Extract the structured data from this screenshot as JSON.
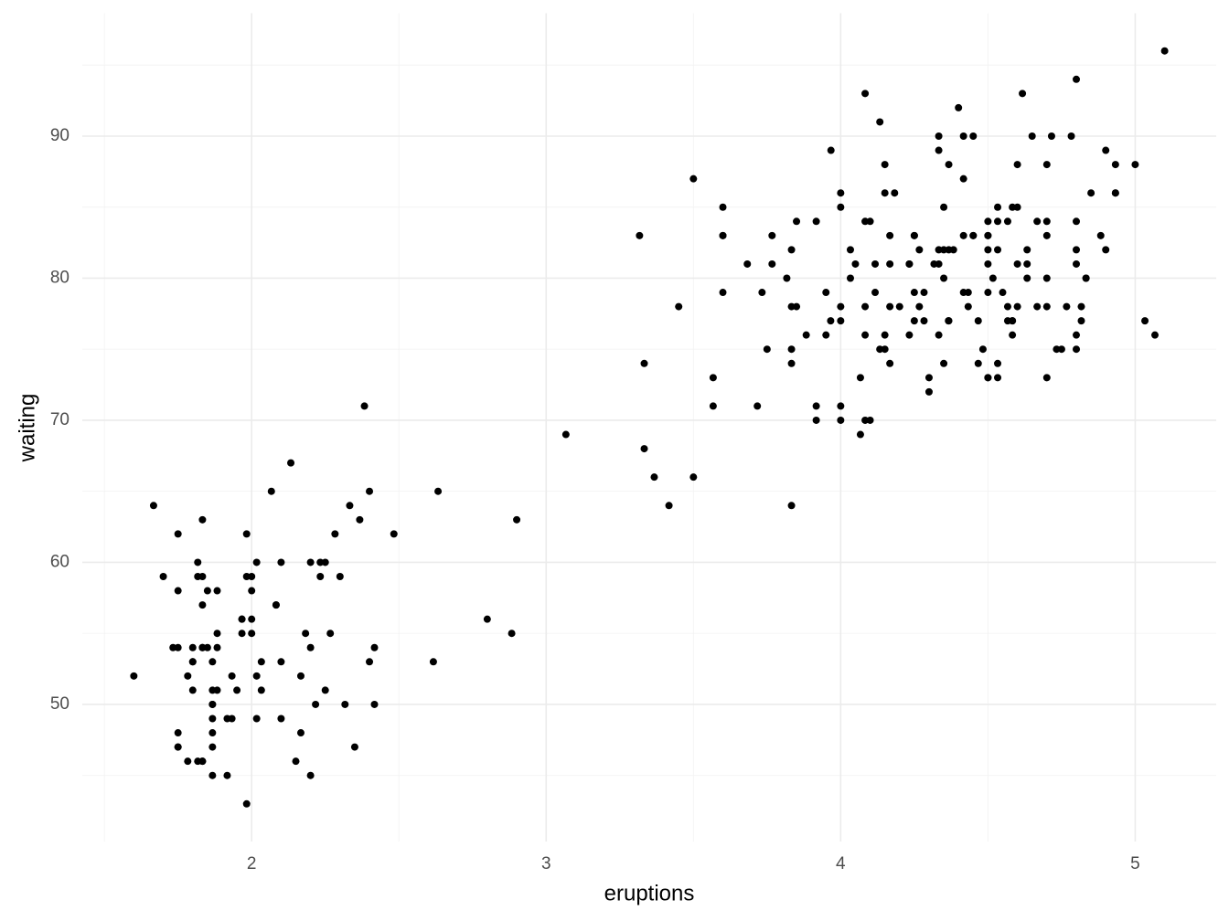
{
  "chart_data": {
    "type": "scatter",
    "xlabel": "eruptions",
    "ylabel": "waiting",
    "color": "#000000",
    "grid": true,
    "xlim": [
      1.425,
      5.275
    ],
    "ylim": [
      40.35,
      98.65
    ],
    "xticks": [
      2,
      3,
      4,
      5
    ],
    "yticks": [
      50,
      60,
      70,
      80,
      90
    ],
    "xminorticks": [
      1.5,
      2.5,
      3.5,
      4.5
    ],
    "yminorticks": [
      45,
      55,
      65,
      75,
      85,
      95
    ],
    "x": [
      3.6,
      1.8,
      3.333,
      2.283,
      4.533,
      2.883,
      4.7,
      3.6,
      1.95,
      4.35,
      1.833,
      3.917,
      4.2,
      1.75,
      4.7,
      2.167,
      1.75,
      4.8,
      1.6,
      4.25,
      1.8,
      1.75,
      3.45,
      3.067,
      4.533,
      3.6,
      1.967,
      4.083,
      3.85,
      4.433,
      4.3,
      4.467,
      3.367,
      4.033,
      3.833,
      2.017,
      1.867,
      4.833,
      1.833,
      4.783,
      4.35,
      1.883,
      4.567,
      1.75,
      4.533,
      3.317,
      3.833,
      2.1,
      4.633,
      2,
      4.8,
      4.716,
      1.833,
      4.833,
      1.733,
      4.883,
      3.717,
      1.667,
      4.567,
      4.317,
      2.233,
      4.5,
      1.75,
      4.8,
      1.817,
      4.4,
      4.167,
      4.7,
      2.067,
      4.7,
      4.033,
      1.967,
      4.5,
      4,
      1.983,
      5.067,
      2.017,
      4.567,
      3.883,
      3.6,
      4.133,
      4.333,
      4.1,
      2.633,
      4.067,
      4.933,
      3.95,
      4.517,
      2.167,
      4,
      2.2,
      4.333,
      1.867,
      4.817,
      1.833,
      4.3,
      4.667,
      3.75,
      1.867,
      4.9,
      2.483,
      4.367,
      2.1,
      4.5,
      4.05,
      1.867,
      4.7,
      1.783,
      4.85,
      3.683,
      4.733,
      2.3,
      4.9,
      4.417,
      1.7,
      4.633,
      2.317,
      4.6,
      1.817,
      4.417,
      2.617,
      4.067,
      4.25,
      1.967,
      4.6,
      3.767,
      1.917,
      4.5,
      2.267,
      4.65,
      1.867,
      4.167,
      2.8,
      4.333,
      1.833,
      4.383,
      1.883,
      4.933,
      2.033,
      3.733,
      4.233,
      2.233,
      4.533,
      4.817,
      4.333,
      1.983,
      4.633,
      2.017,
      5.1,
      1.8,
      5.033,
      4,
      2.4,
      4.6,
      3.567,
      4,
      4.5,
      4.083,
      1.8,
      3.967,
      2.2,
      4.15,
      2,
      3.833,
      3.5,
      4.583,
      2.367,
      5,
      1.933,
      4.617,
      1.917,
      2.083,
      4.583,
      3.333,
      4.167,
      4.333,
      4.5,
      2.417,
      4,
      4.167,
      1.883,
      4.583,
      4.25,
      3.767,
      2.033,
      4.433,
      4.083,
      1.833,
      4.417,
      2.183,
      4.8,
      1.833,
      4.8,
      4.1,
      3.966,
      4.233,
      3.5,
      4.366,
      2.25,
      4.667,
      2.1,
      4.35,
      4.133,
      1.867,
      4.6,
      1.783,
      4.367,
      3.85,
      1.933,
      4.5,
      2.383,
      4.7,
      1.867,
      3.833,
      3.417,
      4.233,
      2.4,
      4.8,
      2,
      4.15,
      1.867,
      4.267,
      1.75,
      4.483,
      4,
      4.117,
      4.083,
      4.267,
      3.917,
      4.55,
      4.083,
      2.417,
      4.183,
      2.217,
      4.45,
      1.883,
      1.85,
      4.283,
      3.95,
      2.333,
      4.15,
      2.35,
      4.933,
      2.9,
      4.583,
      3.833,
      2.083,
      4.367,
      2.133,
      4.35,
      2.2,
      4.45,
      3.567,
      4.5,
      4.15,
      3.817,
      3.917,
      4.45,
      2,
      4.283,
      4.767,
      4.533,
      1.85,
      4.25,
      1.983,
      2.25,
      4.75,
      4.117,
      2.15,
      4.417,
      1.817,
      4.467
    ],
    "y": [
      79,
      54,
      74,
      62,
      85,
      55,
      88,
      85,
      51,
      85,
      54,
      84,
      78,
      47,
      83,
      52,
      62,
      84,
      52,
      79,
      51,
      47,
      78,
      69,
      74,
      83,
      55,
      76,
      78,
      79,
      73,
      77,
      66,
      80,
      74,
      52,
      48,
      80,
      59,
      90,
      80,
      58,
      84,
      58,
      73,
      83,
      64,
      53,
      82,
      59,
      75,
      90,
      54,
      80,
      54,
      83,
      71,
      64,
      77,
      81,
      59,
      84,
      48,
      82,
      60,
      92,
      78,
      78,
      65,
      73,
      82,
      56,
      79,
      71,
      62,
      76,
      60,
      78,
      76,
      83,
      75,
      82,
      70,
      65,
      73,
      88,
      76,
      80,
      48,
      86,
      60,
      90,
      50,
      78,
      63,
      72,
      84,
      75,
      51,
      82,
      62,
      88,
      49,
      83,
      81,
      47,
      84,
      52,
      86,
      81,
      75,
      59,
      89,
      79,
      59,
      81,
      50,
      85,
      59,
      87,
      53,
      69,
      77,
      56,
      88,
      81,
      45,
      82,
      55,
      90,
      45,
      83,
      56,
      89,
      46,
      82,
      51,
      86,
      53,
      79,
      81,
      60,
      82,
      77,
      76,
      59,
      80,
      49,
      96,
      53,
      77,
      77,
      65,
      81,
      71,
      70,
      81,
      93,
      53,
      89,
      45,
      86,
      58,
      78,
      66,
      76,
      63,
      88,
      52,
      93,
      49,
      57,
      77,
      68,
      81,
      81,
      73,
      50,
      85,
      74,
      55,
      77,
      83,
      83,
      51,
      78,
      84,
      46,
      83,
      55,
      81,
      57,
      76,
      84,
      77,
      81,
      87,
      77,
      51,
      78,
      60,
      82,
      91,
      53,
      78,
      46,
      77,
      84,
      49,
      83,
      71,
      80,
      49,
      75,
      64,
      76,
      53,
      94,
      55,
      76,
      50,
      82,
      54,
      75,
      78,
      79,
      78,
      78,
      70,
      79,
      70,
      54,
      86,
      50,
      90,
      54,
      54,
      77,
      79,
      64,
      75,
      47,
      86,
      63,
      85,
      82,
      57,
      82,
      67,
      74,
      54,
      83,
      73,
      73,
      88,
      80,
      71,
      83,
      56,
      79,
      78,
      84,
      58,
      83,
      43,
      60,
      75,
      81,
      46,
      90,
      46,
      74
    ]
  }
}
